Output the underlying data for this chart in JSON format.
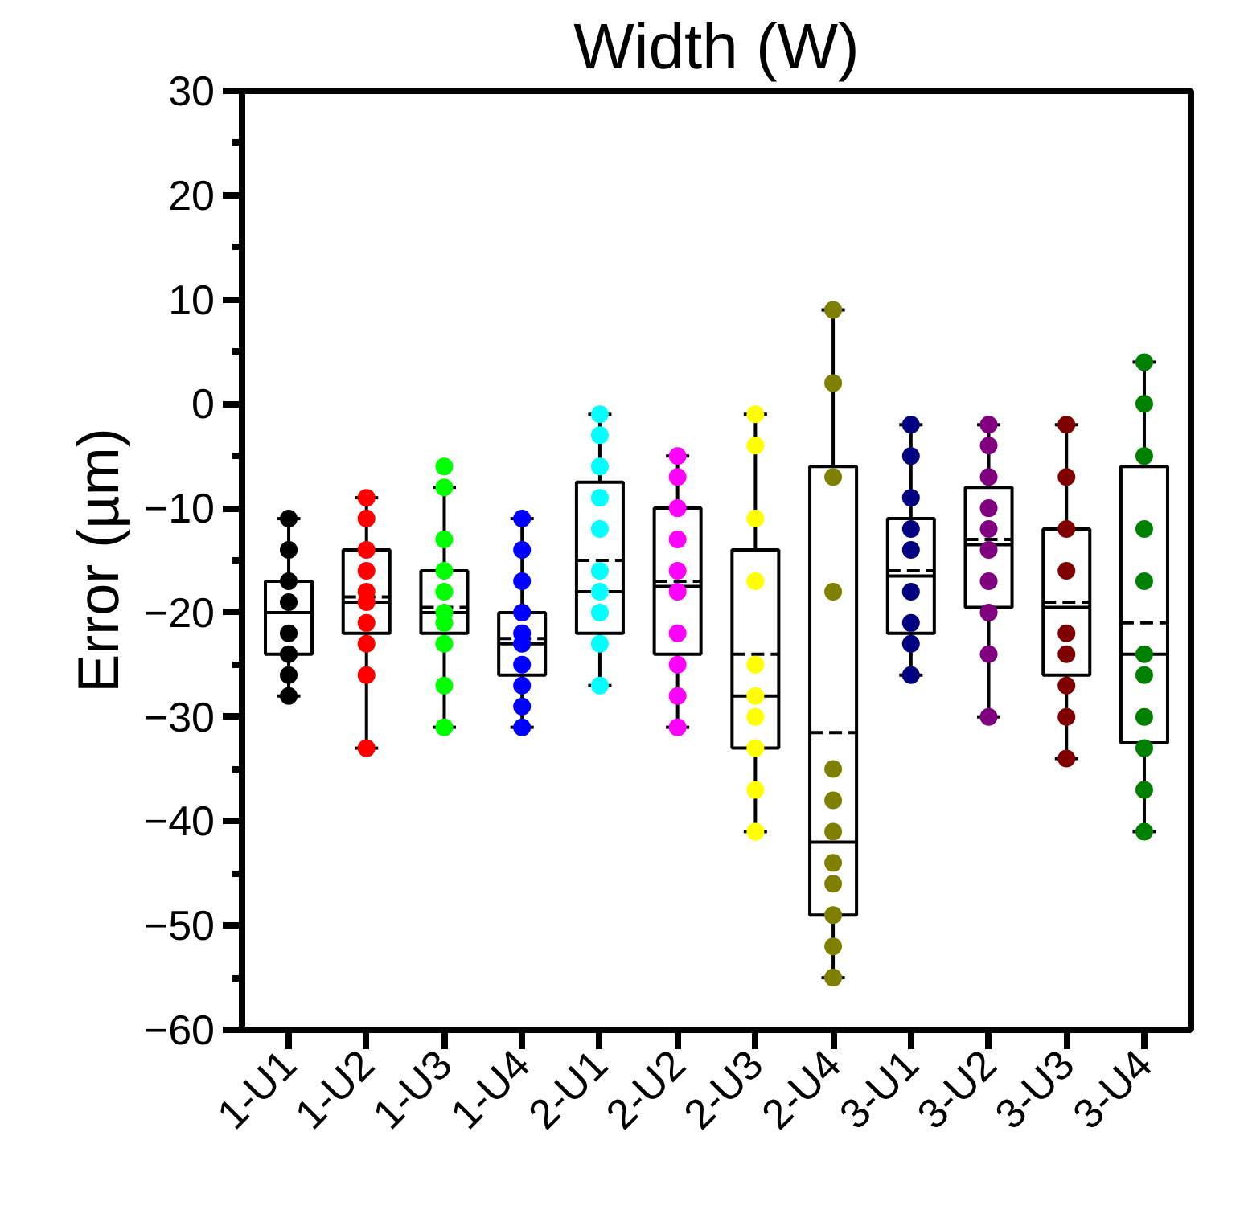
{
  "chart_data": {
    "type": "box",
    "title": "Width (W)",
    "ylabel": "Error (µm)",
    "categories": [
      "1-U1",
      "1-U2",
      "1-U3",
      "1-U4",
      "2-U1",
      "2-U2",
      "2-U3",
      "2-U4",
      "3-U1",
      "3-U2",
      "3-U3",
      "3-U4"
    ],
    "ylim": [
      -60,
      30
    ],
    "yticks": [
      -60,
      {
        "value": -55,
        "label": null
      },
      -50,
      {
        "value": -45,
        "label": null
      },
      -40,
      {
        "value": -35,
        "label": null
      },
      -30,
      {
        "value": -25,
        "label": null
      },
      -20,
      {
        "value": -15,
        "label": null
      },
      -10,
      {
        "value": -5,
        "label": null
      },
      0,
      {
        "value": 5,
        "label": null
      },
      10,
      {
        "value": 15,
        "label": null
      },
      20,
      {
        "value": 25,
        "label": null
      },
      30
    ],
    "grid": false,
    "boxes": [
      {
        "low": -28,
        "q1": -24,
        "median": -20,
        "q3": -17,
        "high": -11,
        "mean": -20
      },
      {
        "low": -33,
        "q1": -22,
        "median": -19,
        "q3": -14,
        "high": -9,
        "mean": -18.5
      },
      {
        "low": -31,
        "q1": -22,
        "median": -20,
        "q3": -16,
        "high": -8,
        "mean": -19.5
      },
      {
        "low": -31,
        "q1": -26,
        "median": -23,
        "q3": -20,
        "high": -11,
        "mean": -22.5
      },
      {
        "low": -27,
        "q1": -22,
        "median": -18,
        "q3": -7.5,
        "high": -1,
        "mean": -15
      },
      {
        "low": -31,
        "q1": -24,
        "median": -17.5,
        "q3": -10,
        "high": -5,
        "mean": -17
      },
      {
        "low": -41,
        "q1": -33,
        "median": -28,
        "q3": -14,
        "high": -1,
        "mean": -24
      },
      {
        "low": -55,
        "q1": -49,
        "median": -42,
        "q3": -6,
        "high": 9,
        "mean": -31.5
      },
      {
        "low": -26,
        "q1": -22,
        "median": -16.5,
        "q3": -11,
        "high": -2,
        "mean": -16
      },
      {
        "low": -30,
        "q1": -19.5,
        "median": -13.5,
        "q3": -8,
        "high": -2,
        "mean": -13
      },
      {
        "low": -34,
        "q1": -26,
        "median": -19.5,
        "q3": -12,
        "high": -2,
        "mean": -19
      },
      {
        "low": -41,
        "q1": -32.5,
        "median": -24,
        "q3": -6,
        "high": 4,
        "mean": -21
      }
    ],
    "series": [
      {
        "type": "scatter",
        "color": "#000000",
        "x": [
          "1-U1",
          "1-U1",
          "1-U1",
          "1-U1",
          "1-U1",
          "1-U1",
          "1-U1",
          "1-U1"
        ],
        "values": [
          -28,
          -26,
          -24,
          -22,
          -19,
          -17,
          -14,
          -11
        ]
      },
      {
        "type": "scatter",
        "color": "#ff0000",
        "x": [
          "1-U2",
          "1-U2",
          "1-U2",
          "1-U2",
          "1-U2",
          "1-U2",
          "1-U2",
          "1-U2",
          "1-U2",
          "1-U2"
        ],
        "values": [
          -33,
          -26,
          -23,
          -21,
          -19,
          -18,
          -16,
          -14,
          -11,
          -9
        ]
      },
      {
        "type": "scatter",
        "color": "#00ff00",
        "x": [
          "1-U3",
          "1-U3",
          "1-U3",
          "1-U3",
          "1-U3",
          "1-U3",
          "1-U3",
          "1-U3",
          "1-U3",
          "1-U3"
        ],
        "values": [
          -31,
          -27,
          -23,
          -21,
          -20,
          -18,
          -16,
          -13,
          -8,
          -6
        ]
      },
      {
        "type": "scatter",
        "color": "#0000ff",
        "x": [
          "1-U4",
          "1-U4",
          "1-U4",
          "1-U4",
          "1-U4",
          "1-U4",
          "1-U4",
          "1-U4",
          "1-U4",
          "1-U4"
        ],
        "values": [
          -31,
          -29,
          -27,
          -25,
          -23,
          -22,
          -20,
          -17,
          -14,
          -11
        ]
      },
      {
        "type": "scatter",
        "color": "#00ffff",
        "x": [
          "2-U1",
          "2-U1",
          "2-U1",
          "2-U1",
          "2-U1",
          "2-U1",
          "2-U1",
          "2-U1",
          "2-U1",
          "2-U1"
        ],
        "values": [
          -27,
          -23,
          -20,
          -18,
          -16,
          -12,
          -9,
          -6,
          -3,
          -1
        ]
      },
      {
        "type": "scatter",
        "color": "#ff00ff",
        "x": [
          "2-U2",
          "2-U2",
          "2-U2",
          "2-U2",
          "2-U2",
          "2-U2",
          "2-U2",
          "2-U2",
          "2-U2",
          "2-U2"
        ],
        "values": [
          -31,
          -28,
          -25,
          -22,
          -18,
          -16,
          -13,
          -10,
          -7,
          -5
        ]
      },
      {
        "type": "scatter",
        "color": "#ffff00",
        "x": [
          "2-U3",
          "2-U3",
          "2-U3",
          "2-U3",
          "2-U3",
          "2-U3",
          "2-U3",
          "2-U3",
          "2-U3",
          "2-U3"
        ],
        "values": [
          -41,
          -37,
          -33,
          -30,
          -28,
          -25,
          -17,
          -11,
          -4,
          -1
        ]
      },
      {
        "type": "scatter",
        "color": "#808000",
        "x": [
          "2-U4",
          "2-U4",
          "2-U4",
          "2-U4",
          "2-U4",
          "2-U4",
          "2-U4",
          "2-U4",
          "2-U4",
          "2-U4",
          "2-U4",
          "2-U4"
        ],
        "values": [
          -55,
          -52,
          -49,
          -46,
          -44,
          -41,
          -38,
          -35,
          -18,
          -7,
          2,
          9
        ]
      },
      {
        "type": "scatter",
        "color": "#000080",
        "x": [
          "3-U1",
          "3-U1",
          "3-U1",
          "3-U1",
          "3-U1",
          "3-U1",
          "3-U1",
          "3-U1",
          "3-U1"
        ],
        "values": [
          -26,
          -23,
          -21,
          -18,
          -14,
          -12,
          -9,
          -5,
          -2
        ]
      },
      {
        "type": "scatter",
        "color": "#800080",
        "x": [
          "3-U2",
          "3-U2",
          "3-U2",
          "3-U2",
          "3-U2",
          "3-U2",
          "3-U2",
          "3-U2",
          "3-U2",
          "3-U2"
        ],
        "values": [
          -30,
          -24,
          -20,
          -17,
          -14,
          -12,
          -10,
          -7,
          -4,
          -2
        ]
      },
      {
        "type": "scatter",
        "color": "#800000",
        "x": [
          "3-U3",
          "3-U3",
          "3-U3",
          "3-U3",
          "3-U3",
          "3-U3",
          "3-U3",
          "3-U3",
          "3-U3"
        ],
        "values": [
          -34,
          -30,
          -27,
          -24,
          -22,
          -16,
          -12,
          -7,
          -2
        ]
      },
      {
        "type": "scatter",
        "color": "#008000",
        "x": [
          "3-U4",
          "3-U4",
          "3-U4",
          "3-U4",
          "3-U4",
          "3-U4",
          "3-U4",
          "3-U4",
          "3-U4",
          "3-U4",
          "3-U4"
        ],
        "values": [
          -41,
          -37,
          -33,
          -30,
          -26,
          -24,
          -17,
          -12,
          -5,
          0,
          4
        ]
      }
    ]
  }
}
